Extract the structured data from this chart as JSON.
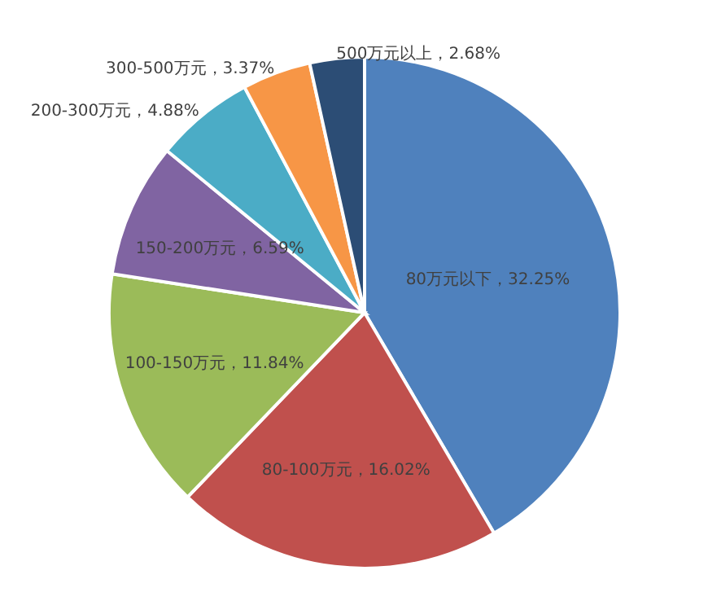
{
  "chart_data": {
    "type": "pie",
    "categories": [
      "80万元以下",
      "80-100万元",
      "100-150万元",
      "150-200万元",
      "200-300万元",
      "300-500万元",
      "500万元以上"
    ],
    "values": [
      32.25,
      16.02,
      11.84,
      6.59,
      4.88,
      3.37,
      2.68
    ],
    "colors": [
      "#4f81bd",
      "#c0504d",
      "#9bbb59",
      "#8064a2",
      "#4bacc6",
      "#f79646",
      "#2c4d75"
    ],
    "value_labels": [
      "，32.25%",
      "，16.02%",
      "，11.84%",
      "，6.59%",
      "，4.88%",
      "，3.37%",
      "，2.68%"
    ]
  }
}
